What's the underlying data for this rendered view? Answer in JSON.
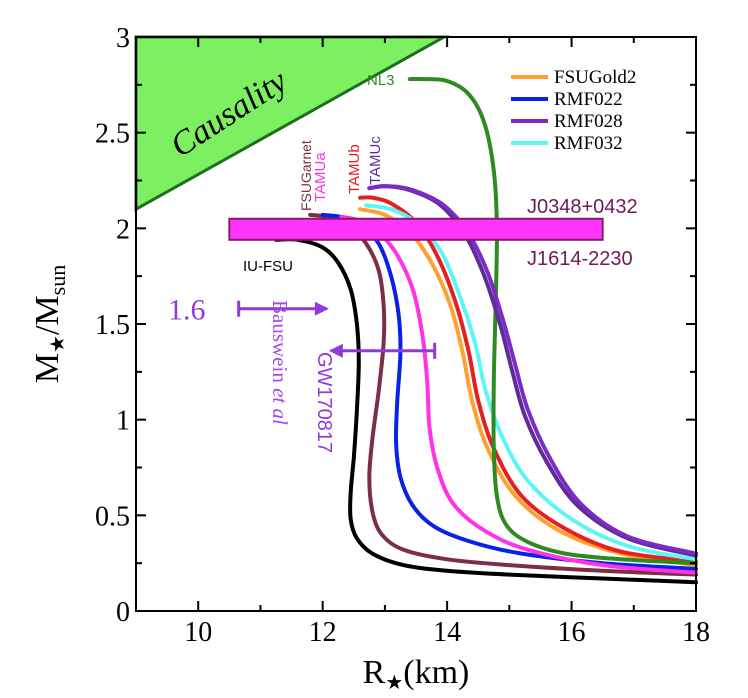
{
  "chart_data": {
    "type": "line",
    "xlabel": "R★(km)",
    "ylabel": "M★/Msun",
    "xlabel_parts": {
      "main": "R",
      "star": "★",
      "unit": "(km)"
    },
    "ylabel_parts": {
      "main": "M",
      "star": "★",
      "slash": "/M",
      "sub": "sun"
    },
    "xlim": [
      9,
      18
    ],
    "ylim": [
      0,
      3
    ],
    "xticks": [
      10,
      12,
      14,
      16,
      18
    ],
    "yticks": [
      0,
      0.5,
      1,
      1.5,
      2,
      2.5,
      3
    ],
    "xtick_labels": [
      "10",
      "12",
      "14",
      "16",
      "18"
    ],
    "ytick_labels": [
      "0",
      "0.5",
      "1",
      "1.5",
      "2",
      "2.5",
      "3"
    ],
    "series": [
      {
        "name": "IU-FSU",
        "color": "#000000",
        "legend": false,
        "points": [
          [
            18,
            0.15
          ],
          [
            16.5,
            0.17
          ],
          [
            15,
            0.19
          ],
          [
            14,
            0.21
          ],
          [
            13.3,
            0.24
          ],
          [
            12.8,
            0.3
          ],
          [
            12.55,
            0.38
          ],
          [
            12.45,
            0.48
          ],
          [
            12.45,
            0.62
          ],
          [
            12.5,
            0.8
          ],
          [
            12.55,
            1.05
          ],
          [
            12.58,
            1.3
          ],
          [
            12.55,
            1.5
          ],
          [
            12.45,
            1.68
          ],
          [
            12.25,
            1.82
          ],
          [
            12.0,
            1.9
          ],
          [
            11.6,
            1.94
          ],
          [
            11.25,
            1.94
          ]
        ]
      },
      {
        "name": "FSUGarnet",
        "color": "#7a3040",
        "legend": false,
        "points": [
          [
            18,
            0.19
          ],
          [
            16.5,
            0.21
          ],
          [
            15,
            0.24
          ],
          [
            14,
            0.27
          ],
          [
            13.3,
            0.32
          ],
          [
            12.95,
            0.4
          ],
          [
            12.8,
            0.52
          ],
          [
            12.75,
            0.7
          ],
          [
            12.8,
            0.9
          ],
          [
            12.9,
            1.15
          ],
          [
            12.98,
            1.4
          ],
          [
            12.98,
            1.6
          ],
          [
            12.9,
            1.78
          ],
          [
            12.7,
            1.92
          ],
          [
            12.4,
            2.02
          ],
          [
            12.1,
            2.06
          ],
          [
            11.8,
            2.07
          ]
        ]
      },
      {
        "name": "RMF022",
        "color": "#0a22e6",
        "legend": true,
        "points": [
          [
            18,
            0.22
          ],
          [
            16.5,
            0.25
          ],
          [
            15.2,
            0.3
          ],
          [
            14.4,
            0.36
          ],
          [
            13.8,
            0.44
          ],
          [
            13.45,
            0.55
          ],
          [
            13.25,
            0.7
          ],
          [
            13.18,
            0.88
          ],
          [
            13.2,
            1.1
          ],
          [
            13.25,
            1.35
          ],
          [
            13.22,
            1.55
          ],
          [
            13.1,
            1.75
          ],
          [
            12.9,
            1.92
          ],
          [
            12.6,
            2.02
          ],
          [
            12.3,
            2.06
          ],
          [
            12.0,
            2.07
          ]
        ]
      },
      {
        "name": "TAMUa",
        "color": "#ff33e6",
        "legend": false,
        "points": [
          [
            18,
            0.2
          ],
          [
            16.5,
            0.24
          ],
          [
            15.3,
            0.32
          ],
          [
            14.6,
            0.42
          ],
          [
            14.1,
            0.56
          ],
          [
            13.85,
            0.74
          ],
          [
            13.72,
            0.95
          ],
          [
            13.68,
            1.2
          ],
          [
            13.6,
            1.45
          ],
          [
            13.45,
            1.68
          ],
          [
            13.2,
            1.86
          ],
          [
            12.9,
            1.98
          ],
          [
            12.6,
            2.04
          ],
          [
            12.3,
            2.06
          ]
        ]
      },
      {
        "name": "FSUGold2",
        "color": "#ffa030",
        "legend": true,
        "points": [
          [
            18,
            0.24
          ],
          [
            16.8,
            0.3
          ],
          [
            15.8,
            0.42
          ],
          [
            15.1,
            0.6
          ],
          [
            14.65,
            0.85
          ],
          [
            14.4,
            1.1
          ],
          [
            14.25,
            1.35
          ],
          [
            14.05,
            1.6
          ],
          [
            13.75,
            1.82
          ],
          [
            13.4,
            1.98
          ],
          [
            13.0,
            2.07
          ],
          [
            12.6,
            2.1
          ]
        ]
      },
      {
        "name": "TAMUb",
        "color": "#e62020",
        "legend": false,
        "points": [
          [
            18,
            0.26
          ],
          [
            16.8,
            0.31
          ],
          [
            15.9,
            0.43
          ],
          [
            15.2,
            0.6
          ],
          [
            14.75,
            0.85
          ],
          [
            14.5,
            1.1
          ],
          [
            14.35,
            1.35
          ],
          [
            14.15,
            1.6
          ],
          [
            13.85,
            1.85
          ],
          [
            13.5,
            2.03
          ],
          [
            13.1,
            2.13
          ],
          [
            12.8,
            2.16
          ],
          [
            12.6,
            2.16
          ]
        ]
      },
      {
        "name": "RMF032",
        "color": "#5ff5f5",
        "legend": true,
        "points": [
          [
            18,
            0.27
          ],
          [
            16.9,
            0.34
          ],
          [
            16.0,
            0.48
          ],
          [
            15.3,
            0.68
          ],
          [
            14.9,
            0.9
          ],
          [
            14.62,
            1.15
          ],
          [
            14.45,
            1.4
          ],
          [
            14.2,
            1.65
          ],
          [
            13.9,
            1.88
          ],
          [
            13.5,
            2.03
          ],
          [
            13.1,
            2.1
          ],
          [
            12.7,
            2.12
          ]
        ]
      },
      {
        "name": "NL3",
        "color": "#2e8b22",
        "legend": false,
        "points": [
          [
            18,
            0.25
          ],
          [
            16.8,
            0.27
          ],
          [
            15.9,
            0.3
          ],
          [
            15.3,
            0.36
          ],
          [
            14.95,
            0.45
          ],
          [
            14.8,
            0.6
          ],
          [
            14.75,
            0.85
          ],
          [
            14.75,
            1.2
          ],
          [
            14.78,
            1.6
          ],
          [
            14.8,
            2.0
          ],
          [
            14.75,
            2.3
          ],
          [
            14.6,
            2.55
          ],
          [
            14.35,
            2.7
          ],
          [
            14.0,
            2.77
          ],
          [
            13.6,
            2.78
          ],
          [
            13.4,
            2.78
          ]
        ]
      },
      {
        "name": "TAMUc",
        "color": "#5c2c9a",
        "legend": false,
        "points": [
          [
            18,
            0.29
          ],
          [
            16.9,
            0.38
          ],
          [
            16.1,
            0.55
          ],
          [
            15.6,
            0.78
          ],
          [
            15.25,
            1.02
          ],
          [
            15.05,
            1.25
          ],
          [
            14.85,
            1.5
          ],
          [
            14.6,
            1.75
          ],
          [
            14.3,
            1.96
          ],
          [
            13.9,
            2.12
          ],
          [
            13.4,
            2.2
          ],
          [
            13.0,
            2.22
          ],
          [
            12.75,
            2.21
          ]
        ]
      },
      {
        "name": "RMF028",
        "color": "#7c2cc4",
        "legend": true,
        "points": [
          [
            18,
            0.3
          ],
          [
            16.9,
            0.39
          ],
          [
            16.15,
            0.56
          ],
          [
            15.65,
            0.8
          ],
          [
            15.3,
            1.05
          ],
          [
            15.1,
            1.28
          ],
          [
            14.9,
            1.52
          ],
          [
            14.65,
            1.77
          ],
          [
            14.35,
            1.97
          ],
          [
            13.95,
            2.12
          ],
          [
            13.45,
            2.2
          ],
          [
            13.05,
            2.22
          ],
          [
            12.75,
            2.21
          ]
        ]
      }
    ],
    "legend_order": [
      "FSUGold2",
      "RMF022",
      "RMF028",
      "RMF032"
    ],
    "curve_labels": [
      {
        "text": "NL3",
        "color": "#2e8b22"
      },
      {
        "text": "FSUGarnet",
        "color": "#7a3040"
      },
      {
        "text": "TAMUa",
        "color": "#ff33e6"
      },
      {
        "text": "TAMUb",
        "color": "#e62020"
      },
      {
        "text": "TAMUc",
        "color": "#5c2c9a"
      },
      {
        "text": "IU-FSU",
        "color": "#000000"
      }
    ],
    "causality": {
      "label": "Causality",
      "color": "#7cf060",
      "polygon": [
        [
          9,
          2.1
        ],
        [
          9,
          3
        ],
        [
          13.95,
          3
        ]
      ]
    },
    "pulsar_band": {
      "x_range": [
        10.5,
        16.5
      ],
      "y_range": [
        1.94,
        2.05
      ],
      "color": "#ff35ff",
      "label_top": "J0348+0432",
      "label_bottom": "J1614-2230",
      "label_color": "#6e1d4e"
    },
    "bauswein": {
      "value_label": "1.6",
      "x": 10.65,
      "y": 1.58,
      "arrow_to": 12.1,
      "color": "#8e3bd8",
      "author": "Bauswein",
      "etal": "et al",
      "author_color": "#a44be6"
    },
    "gw170817": {
      "label": "GW170817",
      "x": 13.8,
      "y": 1.36,
      "arrow_to": 12.1,
      "color": "#8e3bd8"
    }
  }
}
